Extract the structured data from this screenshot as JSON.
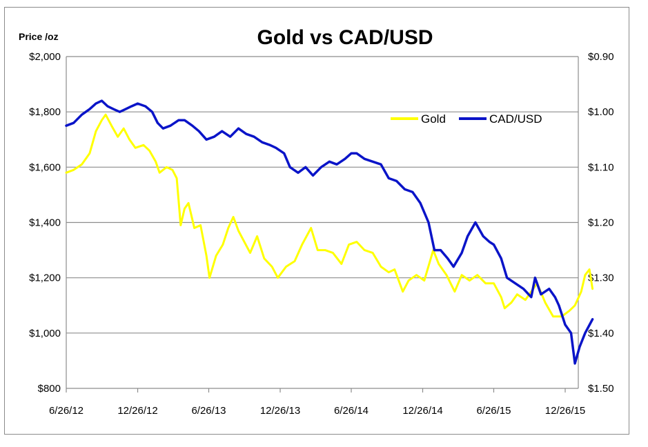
{
  "chart_data": {
    "type": "line",
    "title": "Gold vs CAD/USD",
    "ylabel": "Price /oz",
    "xlabel": "",
    "x_ticks": [
      "6/26/12",
      "12/26/12",
      "6/26/13",
      "12/26/13",
      "6/26/14",
      "12/26/14",
      "6/26/15",
      "12/26/15"
    ],
    "y_left": {
      "range": [
        800,
        2000
      ],
      "ticks": [
        2000,
        1800,
        1600,
        1400,
        1200,
        1000,
        800
      ],
      "tick_labels": [
        "$2,000",
        "$1,800",
        "$1,600",
        "$1,400",
        "$1,200",
        "$1,000",
        "$800"
      ]
    },
    "y_right": {
      "range": [
        0.9,
        1.5
      ],
      "inverted": true,
      "ticks": [
        0.9,
        1.0,
        1.1,
        1.2,
        1.3,
        1.4,
        1.5
      ],
      "tick_labels": [
        "$0.90",
        "$1.00",
        "$1.10",
        "$1.20",
        "$1.30",
        "$1.40",
        "$1.50"
      ]
    },
    "grid": true,
    "legend_position": "top-right",
    "series": [
      {
        "name": "Gold",
        "axis": "left",
        "color": "#ffff00",
        "points": [
          [
            "2012-06-26",
            1580
          ],
          [
            "2012-07-15",
            1590
          ],
          [
            "2012-08-05",
            1610
          ],
          [
            "2012-08-25",
            1650
          ],
          [
            "2012-09-10",
            1730
          ],
          [
            "2012-09-25",
            1770
          ],
          [
            "2012-10-05",
            1790
          ],
          [
            "2012-10-20",
            1750
          ],
          [
            "2012-11-05",
            1710
          ],
          [
            "2012-11-20",
            1740
          ],
          [
            "2012-12-05",
            1700
          ],
          [
            "2012-12-20",
            1670
          ],
          [
            "2013-01-10",
            1680
          ],
          [
            "2013-01-25",
            1660
          ],
          [
            "2013-02-10",
            1620
          ],
          [
            "2013-02-20",
            1580
          ],
          [
            "2013-03-10",
            1600
          ],
          [
            "2013-03-25",
            1590
          ],
          [
            "2013-04-05",
            1560
          ],
          [
            "2013-04-15",
            1390
          ],
          [
            "2013-04-25",
            1450
          ],
          [
            "2013-05-05",
            1470
          ],
          [
            "2013-05-20",
            1380
          ],
          [
            "2013-06-05",
            1390
          ],
          [
            "2013-06-20",
            1280
          ],
          [
            "2013-06-28",
            1200
          ],
          [
            "2013-07-15",
            1280
          ],
          [
            "2013-08-01",
            1320
          ],
          [
            "2013-08-15",
            1380
          ],
          [
            "2013-08-28",
            1420
          ],
          [
            "2013-09-10",
            1370
          ],
          [
            "2013-09-25",
            1330
          ],
          [
            "2013-10-10",
            1290
          ],
          [
            "2013-10-28",
            1350
          ],
          [
            "2013-11-15",
            1270
          ],
          [
            "2013-12-05",
            1240
          ],
          [
            "2013-12-20",
            1200
          ],
          [
            "2014-01-10",
            1240
          ],
          [
            "2014-02-01",
            1260
          ],
          [
            "2014-02-20",
            1320
          ],
          [
            "2014-03-15",
            1380
          ],
          [
            "2014-04-01",
            1300
          ],
          [
            "2014-04-20",
            1300
          ],
          [
            "2014-05-10",
            1290
          ],
          [
            "2014-06-01",
            1250
          ],
          [
            "2014-06-20",
            1320
          ],
          [
            "2014-07-10",
            1330
          ],
          [
            "2014-07-30",
            1300
          ],
          [
            "2014-08-20",
            1290
          ],
          [
            "2014-09-10",
            1240
          ],
          [
            "2014-09-30",
            1220
          ],
          [
            "2014-10-15",
            1230
          ],
          [
            "2014-11-05",
            1150
          ],
          [
            "2014-11-20",
            1190
          ],
          [
            "2014-12-10",
            1210
          ],
          [
            "2014-12-30",
            1190
          ],
          [
            "2015-01-22",
            1300
          ],
          [
            "2015-02-05",
            1250
          ],
          [
            "2015-02-25",
            1210
          ],
          [
            "2015-03-18",
            1150
          ],
          [
            "2015-04-05",
            1210
          ],
          [
            "2015-04-25",
            1190
          ],
          [
            "2015-05-15",
            1210
          ],
          [
            "2015-06-05",
            1180
          ],
          [
            "2015-06-26",
            1180
          ],
          [
            "2015-07-15",
            1130
          ],
          [
            "2015-07-24",
            1090
          ],
          [
            "2015-08-10",
            1110
          ],
          [
            "2015-08-25",
            1140
          ],
          [
            "2015-09-15",
            1120
          ],
          [
            "2015-10-15",
            1180
          ],
          [
            "2015-11-05",
            1110
          ],
          [
            "2015-11-25",
            1060
          ],
          [
            "2015-12-17",
            1060
          ],
          [
            "2016-01-05",
            1080
          ],
          [
            "2016-01-20",
            1100
          ],
          [
            "2016-02-05",
            1150
          ],
          [
            "2016-02-15",
            1210
          ],
          [
            "2016-02-26",
            1230
          ],
          [
            "2016-03-05",
            1160
          ]
        ]
      },
      {
        "name": "CAD/USD",
        "axis": "right",
        "color": "#0a14c8",
        "points": [
          [
            "2012-06-26",
            1.025
          ],
          [
            "2012-07-15",
            1.02
          ],
          [
            "2012-08-05",
            1.005
          ],
          [
            "2012-08-25",
            0.995
          ],
          [
            "2012-09-10",
            0.985
          ],
          [
            "2012-09-25",
            0.98
          ],
          [
            "2012-10-10",
            0.99
          ],
          [
            "2012-10-25",
            0.995
          ],
          [
            "2012-11-10",
            1.0
          ],
          [
            "2012-11-25",
            0.995
          ],
          [
            "2012-12-10",
            0.99
          ],
          [
            "2012-12-26",
            0.985
          ],
          [
            "2013-01-15",
            0.99
          ],
          [
            "2013-02-01",
            1.0
          ],
          [
            "2013-02-15",
            1.02
          ],
          [
            "2013-03-01",
            1.03
          ],
          [
            "2013-03-20",
            1.025
          ],
          [
            "2013-04-10",
            1.015
          ],
          [
            "2013-04-25",
            1.015
          ],
          [
            "2013-05-15",
            1.025
          ],
          [
            "2013-06-01",
            1.035
          ],
          [
            "2013-06-20",
            1.05
          ],
          [
            "2013-07-10",
            1.045
          ],
          [
            "2013-07-30",
            1.035
          ],
          [
            "2013-08-20",
            1.045
          ],
          [
            "2013-09-10",
            1.03
          ],
          [
            "2013-09-30",
            1.04
          ],
          [
            "2013-10-20",
            1.045
          ],
          [
            "2013-11-10",
            1.055
          ],
          [
            "2013-11-30",
            1.06
          ],
          [
            "2013-12-15",
            1.065
          ],
          [
            "2014-01-05",
            1.075
          ],
          [
            "2014-01-20",
            1.1
          ],
          [
            "2014-02-10",
            1.11
          ],
          [
            "2014-03-01",
            1.1
          ],
          [
            "2014-03-20",
            1.115
          ],
          [
            "2014-04-10",
            1.1
          ],
          [
            "2014-05-01",
            1.09
          ],
          [
            "2014-05-20",
            1.095
          ],
          [
            "2014-06-10",
            1.085
          ],
          [
            "2014-06-26",
            1.075
          ],
          [
            "2014-07-10",
            1.075
          ],
          [
            "2014-07-30",
            1.085
          ],
          [
            "2014-08-20",
            1.09
          ],
          [
            "2014-09-10",
            1.095
          ],
          [
            "2014-09-30",
            1.12
          ],
          [
            "2014-10-20",
            1.125
          ],
          [
            "2014-11-10",
            1.14
          ],
          [
            "2014-11-30",
            1.145
          ],
          [
            "2014-12-20",
            1.165
          ],
          [
            "2015-01-10",
            1.2
          ],
          [
            "2015-01-25",
            1.25
          ],
          [
            "2015-02-10",
            1.25
          ],
          [
            "2015-02-28",
            1.265
          ],
          [
            "2015-03-15",
            1.28
          ],
          [
            "2015-04-05",
            1.255
          ],
          [
            "2015-04-20",
            1.225
          ],
          [
            "2015-05-10",
            1.2
          ],
          [
            "2015-05-30",
            1.225
          ],
          [
            "2015-06-15",
            1.235
          ],
          [
            "2015-06-26",
            1.24
          ],
          [
            "2015-07-15",
            1.265
          ],
          [
            "2015-07-30",
            1.3
          ],
          [
            "2015-08-20",
            1.31
          ],
          [
            "2015-09-10",
            1.32
          ],
          [
            "2015-09-30",
            1.335
          ],
          [
            "2015-10-10",
            1.3
          ],
          [
            "2015-10-25",
            1.33
          ],
          [
            "2015-11-15",
            1.32
          ],
          [
            "2015-11-30",
            1.335
          ],
          [
            "2015-12-10",
            1.35
          ],
          [
            "2015-12-26",
            1.385
          ],
          [
            "2016-01-10",
            1.4
          ],
          [
            "2016-01-20",
            1.455
          ],
          [
            "2016-02-01",
            1.425
          ],
          [
            "2016-02-15",
            1.4
          ],
          [
            "2016-03-05",
            1.375
          ]
        ]
      }
    ]
  }
}
